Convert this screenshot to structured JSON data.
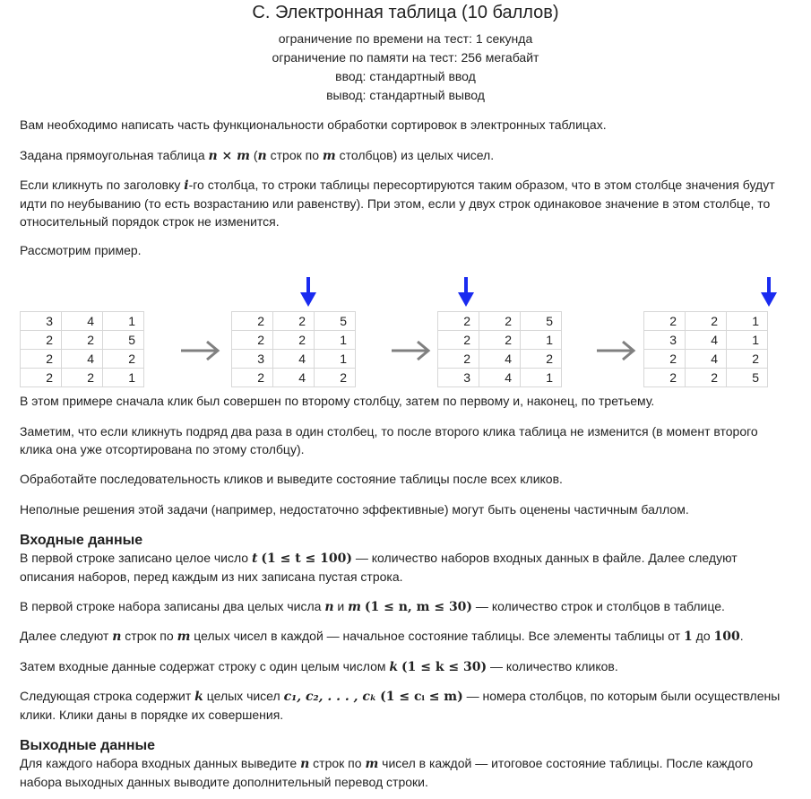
{
  "header": {
    "title": "C. Электронная таблица (10 баллов)",
    "time_limit": "ограничение по времени на тест: 1 секунда",
    "memory_limit": "ограничение по памяти на тест: 256 мегабайт",
    "input": "ввод: стандартный ввод",
    "output": "вывод: стандартный вывод"
  },
  "statement": {
    "p1": "Вам необходимо написать часть функциональности обработки сортировок в электронных таблицах.",
    "p2": {
      "a": "Задана прямоугольная таблица ",
      "math1": "n × m",
      "b": " (",
      "math2": "n",
      "c": " строк по ",
      "math3": "m",
      "d": " столбцов) из целых чисел."
    },
    "p3": {
      "a": "Если кликнуть по заголовку ",
      "math1": "i",
      "b": "-го столбца, то строки таблицы пересортируются таким образом, что в этом столбце значения будут идти по неубыванию (то есть возрастанию или равенству). При этом, если у двух строк одинаковое значение в этом столбце, то относительный порядок строк не изменится."
    },
    "p4": "Рассмотрим пример.",
    "p5": "В этом примере сначала клик был совершен по второму столбцу, затем по первому и, наконец, по третьему.",
    "p6": "Заметим, что если кликнуть подряд два раза в один столбец, то после второго клика таблица не изменится (в момент второго клика она уже отсортирована по этому столбцу).",
    "p7": "Обработайте последовательность кликов и выведите состояние таблицы после всех кликов.",
    "p8": "Неполные решения этой задачи (например, недостаточно эффективные) могут быть оценены частичным баллом."
  },
  "example_tables": [
    [
      [
        "3",
        "4",
        "1"
      ],
      [
        "2",
        "2",
        "5"
      ],
      [
        "2",
        "4",
        "2"
      ],
      [
        "2",
        "2",
        "1"
      ]
    ],
    [
      [
        "2",
        "2",
        "5"
      ],
      [
        "2",
        "2",
        "1"
      ],
      [
        "3",
        "4",
        "1"
      ],
      [
        "2",
        "4",
        "2"
      ]
    ],
    [
      [
        "2",
        "2",
        "5"
      ],
      [
        "2",
        "2",
        "1"
      ],
      [
        "2",
        "4",
        "2"
      ],
      [
        "3",
        "4",
        "1"
      ]
    ],
    [
      [
        "2",
        "2",
        "1"
      ],
      [
        "3",
        "4",
        "1"
      ],
      [
        "2",
        "4",
        "2"
      ],
      [
        "2",
        "2",
        "5"
      ]
    ]
  ],
  "colors": {
    "arrow_down": "#1a2bf0",
    "arrow_right": "#808080",
    "cell_border": "#d7d7d7"
  },
  "input_section": {
    "title": "Входные данные",
    "p1": {
      "a": "В первой строке записано целое число ",
      "math1": "t",
      "math2": "(1 ≤ t ≤ 100)",
      "b": " — количество наборов входных данных в файле. Далее следуют описания наборов, перед каждым из них записана пустая строка."
    },
    "p2": {
      "a": "В первой строке набора записаны два целых числа ",
      "math1": "n",
      "b": " и ",
      "math2": "m",
      "math3": "(1 ≤ n, m ≤ 30)",
      "c": " — количество строк и столбцов в таблице."
    },
    "p3": {
      "a": "Далее следуют ",
      "math1": "n",
      "b": " строк по ",
      "math2": "m",
      "c": " целых чисел в каждой — начальное состояние таблицы. Все элементы таблицы от ",
      "math3": "1",
      "d": " до ",
      "math4": "100",
      "e": "."
    },
    "p4": {
      "a": "Затем входные данные содержат строку с один целым числом ",
      "math1": "k",
      "math2": "(1 ≤ k ≤ 30)",
      "b": " — количество кликов."
    },
    "p5": {
      "a": "Следующая строка содержит ",
      "math1": "k",
      "b": " целых чисел ",
      "math2": "c₁, c₂, . . . , cₖ",
      "math3": "(1 ≤ cᵢ ≤ m)",
      "c": " — номера столбцов, по которым были осуществлены клики. Клики даны в порядке их совершения."
    }
  },
  "output_section": {
    "title": "Выходные данные",
    "p1": {
      "a": "Для каждого набора входных данных выведите ",
      "math1": "n",
      "b": " строк по ",
      "math2": "m",
      "c": " чисел в каждой — итоговое состояние таблицы. После каждого набора выходных данных выводите дополнительный перевод строки."
    }
  }
}
